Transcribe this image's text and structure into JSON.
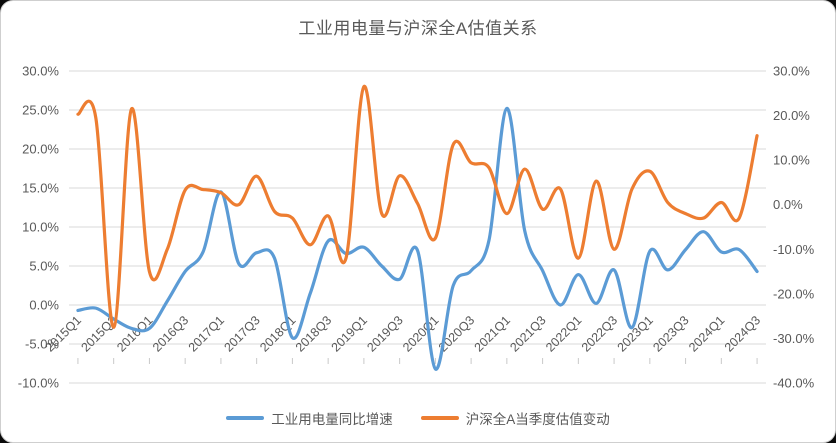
{
  "chart_data": {
    "type": "line",
    "title": "工业用电量与沪深全A估值关系",
    "categories": [
      "2015Q1",
      "2015Q2",
      "2015Q3",
      "2015Q4",
      "2016Q1",
      "2016Q2",
      "2016Q3",
      "2016Q4",
      "2017Q1",
      "2017Q2",
      "2017Q3",
      "2017Q4",
      "2018Q1",
      "2018Q2",
      "2018Q3",
      "2018Q4",
      "2019Q1",
      "2019Q2",
      "2019Q3",
      "2019Q4",
      "2020Q1",
      "2020Q2",
      "2020Q3",
      "2020Q4",
      "2021Q1",
      "2021Q2",
      "2021Q3",
      "2021Q4",
      "2022Q1",
      "2022Q2",
      "2022Q3",
      "2022Q4",
      "2023Q1",
      "2023Q2",
      "2023Q3",
      "2023Q4",
      "2024Q1",
      "2024Q2",
      "2024Q3"
    ],
    "x_tick_labels": [
      "2015Q1",
      "2015Q3",
      "2016Q1",
      "2016Q3",
      "2017Q1",
      "2017Q3",
      "2018Q1",
      "2018Q3",
      "2019Q1",
      "2019Q3",
      "2020Q1",
      "2020Q3",
      "2021Q1",
      "2021Q3",
      "2022Q1",
      "2022Q3",
      "2023Q1",
      "2023Q3",
      "2024Q1",
      "2024Q3"
    ],
    "series": [
      {
        "name": "工业用电量同比增速",
        "axis": "left",
        "color": "#5B9BD5",
        "values": [
          -0.7,
          -0.4,
          -1.8,
          -3.0,
          -3.0,
          0.5,
          4.3,
          6.8,
          14.5,
          5.3,
          6.7,
          6.0,
          -4.2,
          1.5,
          8.2,
          6.6,
          7.4,
          5.0,
          3.3,
          7.0,
          -8.2,
          2.5,
          4.4,
          8.3,
          25.2,
          9.5,
          4.4,
          0.0,
          3.9,
          0.2,
          4.5,
          -2.9,
          6.9,
          4.5,
          7.1,
          9.4,
          6.8,
          7.1,
          4.3
        ]
      },
      {
        "name": "沪深全A当季度估值变动",
        "axis": "right",
        "color": "#ED7D31",
        "values": [
          20.3,
          19.5,
          -27.5,
          21.5,
          -15.0,
          -10.0,
          3.3,
          3.4,
          2.7,
          0.0,
          6.4,
          -1.5,
          -3.0,
          -9.0,
          -2.5,
          -12.0,
          26.5,
          -2.0,
          6.5,
          0.3,
          -7.5,
          13.5,
          9.4,
          8.3,
          -2.0,
          8.0,
          -1.0,
          3.5,
          -12.0,
          5.3,
          -10.0,
          3.5,
          7.5,
          0.5,
          -2.0,
          -3.0,
          0.5,
          -3.0,
          15.5
        ]
      }
    ],
    "left_axis": {
      "min": -10,
      "max": 30,
      "step": 5,
      "tick_labels": [
        "30.0%",
        "25.0%",
        "20.0%",
        "15.0%",
        "10.0%",
        "5.0%",
        "0.0%",
        "-5.0%",
        "-10.0%"
      ]
    },
    "right_axis": {
      "min": -40,
      "max": 30,
      "step": 10,
      "tick_labels": [
        "30.0%",
        "20.0%",
        "10.0%",
        "0.0%",
        "-10.0%",
        "-20.0%",
        "-30.0%",
        "-40.0%"
      ]
    },
    "grid": true,
    "legend_position": "bottom",
    "colors": {
      "text": "#595959",
      "gridline": "#D9D9D9",
      "tick": "#C9C9C9"
    }
  }
}
